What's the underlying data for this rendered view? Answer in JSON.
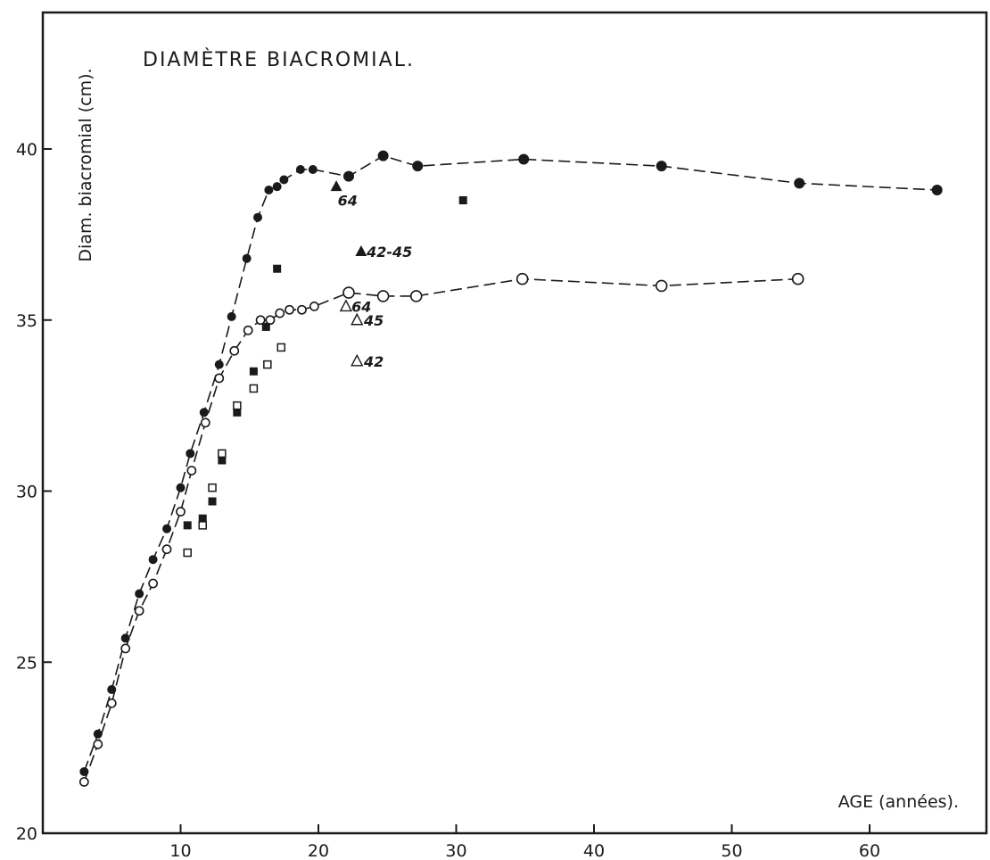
{
  "chart_data": {
    "type": "scatter",
    "title": "DIAMÈTRE BIACROMIAL.",
    "xlabel": "AGE (années).",
    "ylabel": "Diam. biacromial (cm).",
    "xlim": [
      0,
      70
    ],
    "ylim": [
      20,
      43
    ],
    "xticks": [
      10,
      20,
      30,
      40,
      50,
      60
    ],
    "yticks": [
      20,
      25,
      30,
      35,
      40
    ],
    "grid": false,
    "colors": {
      "ink": "#1a1a1a",
      "background": "#ffffff"
    },
    "series": [
      {
        "marker": "filled-circle",
        "dashed_line": true,
        "points": [
          [
            3,
            21.8
          ],
          [
            4,
            22.9
          ],
          [
            5,
            24.2
          ],
          [
            6,
            25.7
          ],
          [
            7,
            27.0
          ],
          [
            8,
            28.0
          ],
          [
            9,
            28.9
          ],
          [
            10,
            30.1
          ],
          [
            10.7,
            31.1
          ],
          [
            11.7,
            32.3
          ],
          [
            12.8,
            33.7
          ],
          [
            13.7,
            35.1
          ],
          [
            14.8,
            36.8
          ],
          [
            15.6,
            38.0
          ],
          [
            16.4,
            38.8
          ],
          [
            17.0,
            38.9
          ],
          [
            17.5,
            39.1
          ],
          [
            18.7,
            39.4
          ],
          [
            19.6,
            39.4
          ],
          [
            22.2,
            39.2
          ],
          [
            24.7,
            39.8
          ],
          [
            27.2,
            39.5
          ],
          [
            34.9,
            39.7
          ],
          [
            44.9,
            39.5
          ],
          [
            54.9,
            39.0
          ],
          [
            64.9,
            38.8
          ]
        ]
      },
      {
        "marker": "open-circle",
        "dashed_line": true,
        "points": [
          [
            3,
            21.5
          ],
          [
            4,
            22.6
          ],
          [
            5,
            23.8
          ],
          [
            6,
            25.4
          ],
          [
            7,
            26.5
          ],
          [
            8,
            27.3
          ],
          [
            9,
            28.3
          ],
          [
            10,
            29.4
          ],
          [
            10.8,
            30.6
          ],
          [
            11.8,
            32.0
          ],
          [
            12.8,
            33.3
          ],
          [
            13.9,
            34.1
          ],
          [
            14.9,
            34.7
          ],
          [
            15.8,
            35.0
          ],
          [
            16.5,
            35.0
          ],
          [
            17.2,
            35.2
          ],
          [
            17.9,
            35.3
          ],
          [
            18.8,
            35.3
          ],
          [
            19.7,
            35.4
          ],
          [
            22.2,
            35.8
          ],
          [
            24.7,
            35.7
          ],
          [
            27.1,
            35.7
          ],
          [
            34.8,
            36.2
          ],
          [
            44.9,
            36.0
          ],
          [
            54.8,
            36.2
          ]
        ]
      },
      {
        "marker": "filled-square",
        "dashed_line": false,
        "points": [
          [
            10.5,
            29.0
          ],
          [
            11.6,
            29.2
          ],
          [
            12.3,
            29.7
          ],
          [
            13.0,
            30.9
          ],
          [
            14.1,
            32.3
          ],
          [
            15.3,
            33.5
          ],
          [
            16.2,
            34.8
          ],
          [
            17.0,
            36.5
          ],
          [
            30.5,
            38.5
          ]
        ]
      },
      {
        "marker": "open-square",
        "dashed_line": false,
        "points": [
          [
            10.5,
            28.2
          ],
          [
            11.6,
            29.0
          ],
          [
            12.3,
            30.1
          ],
          [
            13.0,
            31.1
          ],
          [
            14.1,
            32.5
          ],
          [
            15.3,
            33.0
          ],
          [
            16.3,
            33.7
          ],
          [
            17.3,
            34.2
          ]
        ]
      },
      {
        "marker": "filled-triangle",
        "dashed_line": false,
        "points": [
          [
            21.3,
            38.9
          ],
          [
            23.1,
            37.0
          ]
        ]
      },
      {
        "marker": "open-triangle",
        "dashed_line": false,
        "points": [
          [
            22.0,
            35.4
          ],
          [
            22.8,
            35.0
          ],
          [
            22.8,
            33.8
          ]
        ]
      }
    ],
    "annotations": [
      {
        "text": "64",
        "x": 21.4,
        "y": 38.5
      },
      {
        "text": "42-45",
        "x": 23.5,
        "y": 37.0
      },
      {
        "text": "64",
        "x": 22.4,
        "y": 35.4
      },
      {
        "text": "45",
        "x": 23.3,
        "y": 35.0
      },
      {
        "text": "42",
        "x": 23.3,
        "y": 33.8
      }
    ]
  }
}
